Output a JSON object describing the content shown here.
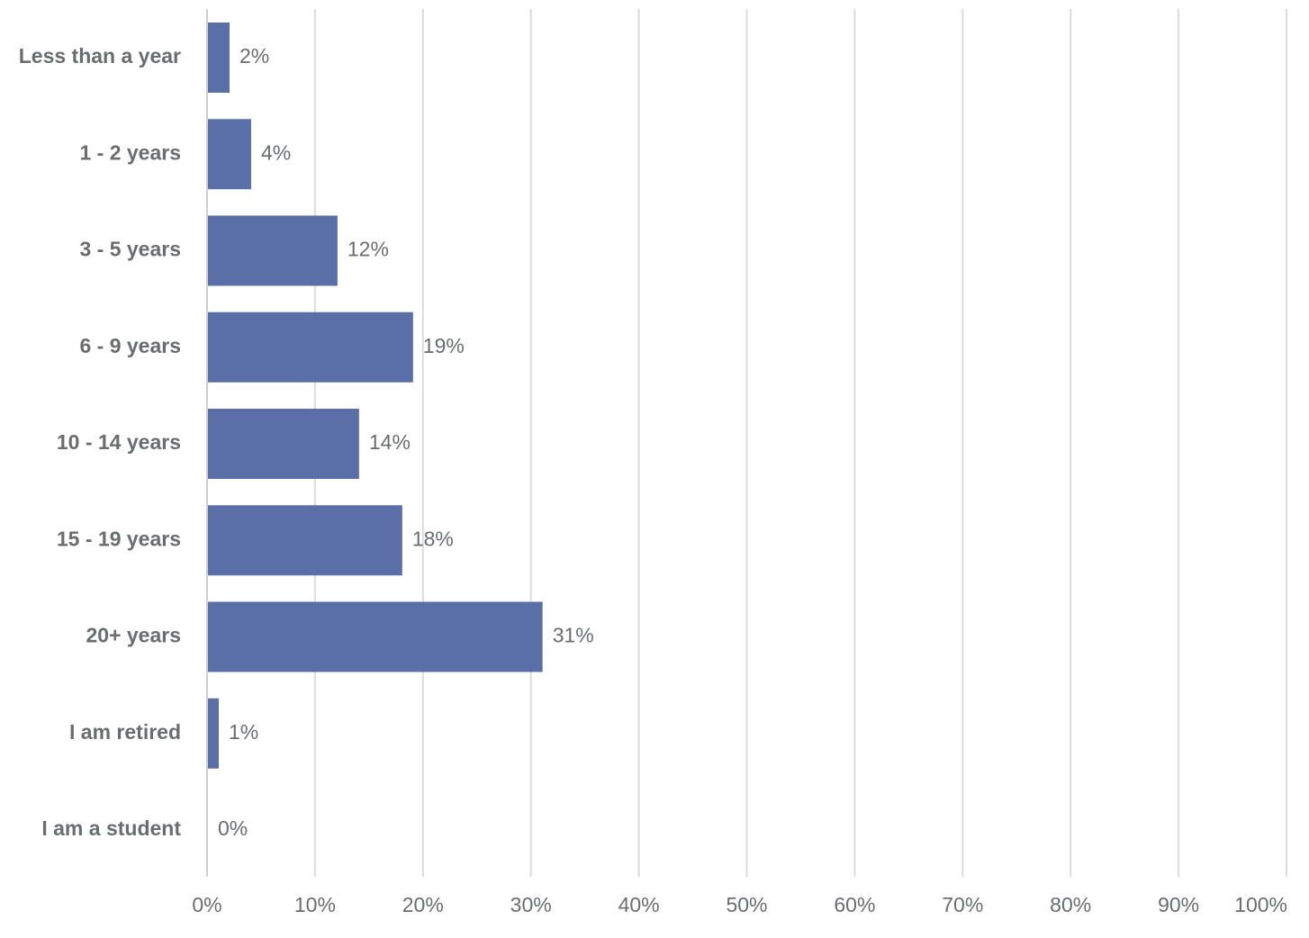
{
  "chart_data": {
    "type": "bar",
    "orientation": "horizontal",
    "categories": [
      "Less than a year",
      "1 - 2 years",
      "3 - 5 years",
      "6 - 9 years",
      "10 - 14 years",
      "15 - 19 years",
      "20+ years",
      "I am retired",
      "I am a student"
    ],
    "values": [
      2,
      4,
      12,
      19,
      14,
      18,
      31,
      1,
      0
    ],
    "value_labels": [
      "2%",
      "4%",
      "12%",
      "19%",
      "14%",
      "18%",
      "31%",
      "1%",
      "0%"
    ],
    "xlim": [
      0,
      100
    ],
    "x_ticks": [
      "0%",
      "10%",
      "20%",
      "30%",
      "40%",
      "50%",
      "60%",
      "70%",
      "80%",
      "90%",
      "100%"
    ],
    "title": "",
    "xlabel": "",
    "ylabel": "",
    "grid": "vertical",
    "legend": "none",
    "bar_color": "#5a6fa8"
  }
}
